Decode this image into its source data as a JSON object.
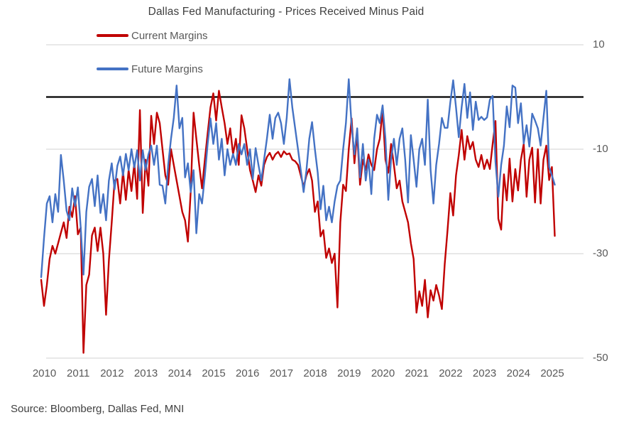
{
  "title": "Dallas Fed Manufacturing - Prices Received Minus Paid",
  "source_note": "Source: Bloomberg, Dallas Fed, MNI",
  "legend": {
    "items": [
      {
        "label": "Current Margins",
        "color": "#C00000"
      },
      {
        "label": "Future Margins",
        "color": "#4472C4"
      }
    ]
  },
  "axes": {
    "y_tick_labels": [
      "10",
      "-10",
      "-30",
      "-50"
    ],
    "y_tick_values": [
      10,
      -10,
      -30,
      -50
    ],
    "x_tick_labels": [
      "2010",
      "2011",
      "2012",
      "2013",
      "2014",
      "2015",
      "2016",
      "2017",
      "2018",
      "2019",
      "2020",
      "2021",
      "2022",
      "2023",
      "2024",
      "2025"
    ],
    "zero_line_value": 0
  },
  "colors": {
    "gridline": "#D9D9D9",
    "zero_line": "#000000",
    "axis_text": "#595959",
    "title_text": "#3F3F3F",
    "current_margins": "#C00000",
    "future_margins": "#4472C4"
  },
  "chart_data": {
    "type": "line",
    "title": "Dallas Fed Manufacturing - Prices Received Minus Paid",
    "frequency": "monthly",
    "x_start": "2010-01",
    "x_end": "2025-03",
    "xlabel": "",
    "ylabel": "",
    "ylim": [
      -50,
      10
    ],
    "y_gridlines": [
      10,
      -10,
      -30,
      -50
    ],
    "zero_line": 0,
    "grid": true,
    "legend_position": "top-left",
    "x_tick_years": [
      2010,
      2011,
      2012,
      2013,
      2014,
      2015,
      2016,
      2017,
      2018,
      2019,
      2020,
      2021,
      2022,
      2023,
      2024,
      2025
    ],
    "series": [
      {
        "name": "Current Margins",
        "color": "#C00000",
        "values": [
          -35,
          -40,
          -36,
          -31,
          -28.5,
          -30,
          -28,
          -26,
          -24,
          -27,
          -21,
          -23,
          -19,
          -26.3,
          -25,
          -49,
          -36,
          -34,
          -26.5,
          -25,
          -29.5,
          -25,
          -30,
          -41.7,
          -31.3,
          -24,
          -16,
          -15.7,
          -20.4,
          -14.3,
          -19.7,
          -14,
          -18,
          -12.7,
          -19.5,
          -2.5,
          -22.2,
          -12,
          -17,
          -3.6,
          -9,
          -3,
          -5,
          -10,
          -15,
          -16.8,
          -10,
          -13,
          -16,
          -19,
          -22,
          -23.6,
          -27.7,
          -18,
          -3,
          -8,
          -13,
          -17.5,
          -12,
          -7,
          -2,
          0.7,
          -4.5,
          1.2,
          -2,
          -5,
          -9,
          -6,
          -11,
          -8,
          -13,
          -3.5,
          -6,
          -10,
          -14,
          -16,
          -18.2,
          -15,
          -17,
          -13,
          -11.5,
          -10.7,
          -12,
          -11,
          -10.5,
          -11.5,
          -10.4,
          -11,
          -10.8,
          -12,
          -12.3,
          -13,
          -15,
          -17.2,
          -15,
          -13.8,
          -16,
          -22,
          -20,
          -26.7,
          -25.5,
          -30.8,
          -29,
          -31.8,
          -30,
          -40.3,
          -24,
          -16.8,
          -18,
          -10,
          -4.1,
          -12.7,
          -7,
          -16.8,
          -12,
          -14,
          -11,
          -13,
          -14,
          -10,
          -8,
          -2.5,
          -12,
          -14.5,
          -9,
          -13,
          -17.5,
          -16,
          -20,
          -22,
          -24,
          -28,
          -31,
          -41.3,
          -37.2,
          -40,
          -35,
          -42.2,
          -37,
          -39,
          -36,
          -38,
          -40.6,
          -32,
          -25.6,
          -18.4,
          -22.7,
          -15,
          -11.1,
          -6.3,
          -12,
          -7.5,
          -10,
          -8.6,
          -12,
          -13.4,
          -11.1,
          -13.8,
          -12,
          -13.8,
          -9,
          -4.6,
          -23.3,
          -25.4,
          -14.8,
          -19.8,
          -11.8,
          -20,
          -13.8,
          -17.9,
          -12,
          -9,
          -19.1,
          -12,
          -9.7,
          -20.2,
          -10,
          -20.4,
          -12,
          -9.3,
          -15.9,
          -13.4,
          -26.6
        ]
      },
      {
        "name": "Future Margins",
        "color": "#4472C4",
        "values": [
          -34.5,
          -27,
          -20.4,
          -19,
          -24,
          -18.6,
          -22,
          -11.1,
          -16,
          -21.8,
          -23.6,
          -17.5,
          -20.9,
          -17.3,
          -25,
          -34,
          -22,
          -17.2,
          -15.7,
          -20.9,
          -15,
          -22.2,
          -18.6,
          -23.6,
          -16,
          -12.7,
          -17.7,
          -13.2,
          -11.4,
          -15,
          -10.9,
          -14,
          -10,
          -13.5,
          -10.2,
          -16,
          -10.2,
          -14,
          -11,
          -9.3,
          -13,
          -9.3,
          -16.8,
          -17,
          -20.4,
          -13,
          -8,
          -4,
          2.2,
          -6,
          -4,
          -15.4,
          -12.7,
          -18.2,
          -14,
          -26.1,
          -18.6,
          -20.4,
          -15,
          -9,
          -4.1,
          -9,
          -5,
          -12,
          -8,
          -15,
          -10,
          -13,
          -10.9,
          -13,
          -9,
          -11,
          -9,
          -13,
          -10,
          -15.7,
          -9.8,
          -13,
          -16,
          -12,
          -8,
          -3.4,
          -8,
          -4,
          -3,
          -5,
          -9,
          -4,
          3.4,
          -2,
          -6,
          -10,
          -14,
          -18.2,
          -14,
          -8,
          -4.8,
          -10,
          -14.5,
          -21.5,
          -17,
          -23.6,
          -21,
          -24,
          -20,
          -17,
          -16,
          -10,
          -5,
          3.4,
          -5.5,
          -11,
          -6,
          -15.4,
          -9,
          -16,
          -12,
          -18.6,
          -8,
          -3.4,
          -5,
          -1.6,
          -8,
          -19.7,
          -12,
          -8,
          -13,
          -8,
          -6,
          -12,
          -20.2,
          -7.3,
          -12,
          -17.2,
          -10,
          -8,
          -13,
          -0.5,
          -14,
          -20.4,
          -13,
          -9,
          -4,
          -5.9,
          -5.9,
          -1,
          3.2,
          -2,
          -7.7,
          -2,
          2.5,
          -4,
          0.9,
          -6.3,
          -0.9,
          -4.4,
          -3.8,
          -4.4,
          -3.9,
          -0.5,
          0.2,
          -12.4,
          -19.1,
          -13,
          -9.3,
          -1.8,
          -5.8,
          2.2,
          1.8,
          -5,
          -1.2,
          -8.9,
          -5.4,
          -9.5,
          -3.2,
          -4.5,
          -6,
          -9.3,
          -4,
          1.2,
          -13.4,
          -15,
          -16.8
        ]
      }
    ]
  }
}
